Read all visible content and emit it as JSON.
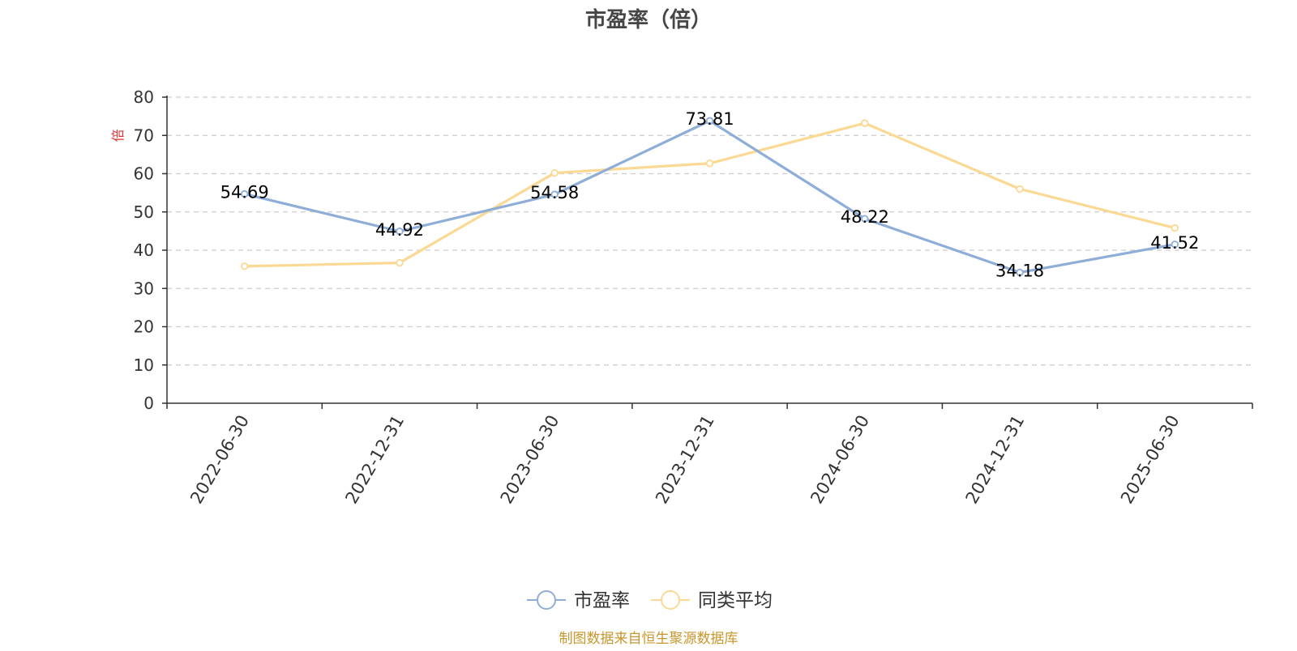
{
  "chart_data": {
    "type": "line",
    "title": "市盈率（倍）",
    "ylabel": "倍",
    "xlabel": "",
    "categories": [
      "2022-06-30",
      "2022-12-31",
      "2023-06-30",
      "2023-12-31",
      "2024-06-30",
      "2024-12-31",
      "2025-06-30"
    ],
    "ylim": [
      0,
      80
    ],
    "yticks": [
      0,
      10,
      20,
      30,
      40,
      50,
      60,
      70,
      80
    ],
    "grid": true,
    "legend_position": "bottom-center",
    "series": [
      {
        "name": "市盈率",
        "color": "#8eaed8",
        "values": [
          54.69,
          44.92,
          54.58,
          73.81,
          48.22,
          34.18,
          41.52
        ],
        "labels": [
          "54.69",
          "44.92",
          "54.58",
          "73.81",
          "48.22",
          "34.18",
          "41.52"
        ]
      },
      {
        "name": "同类平均",
        "color": "#fbd994",
        "values": [
          35.8,
          36.7,
          60.2,
          62.7,
          73.2,
          56.0,
          45.8
        ]
      }
    ]
  },
  "source_note": "制图数据来自恒生聚源数据库",
  "colors": {
    "axis": "#333333",
    "grid": "#cccccc",
    "ylabel": "#e03030",
    "source": "#c8962c",
    "title": "#464646"
  }
}
